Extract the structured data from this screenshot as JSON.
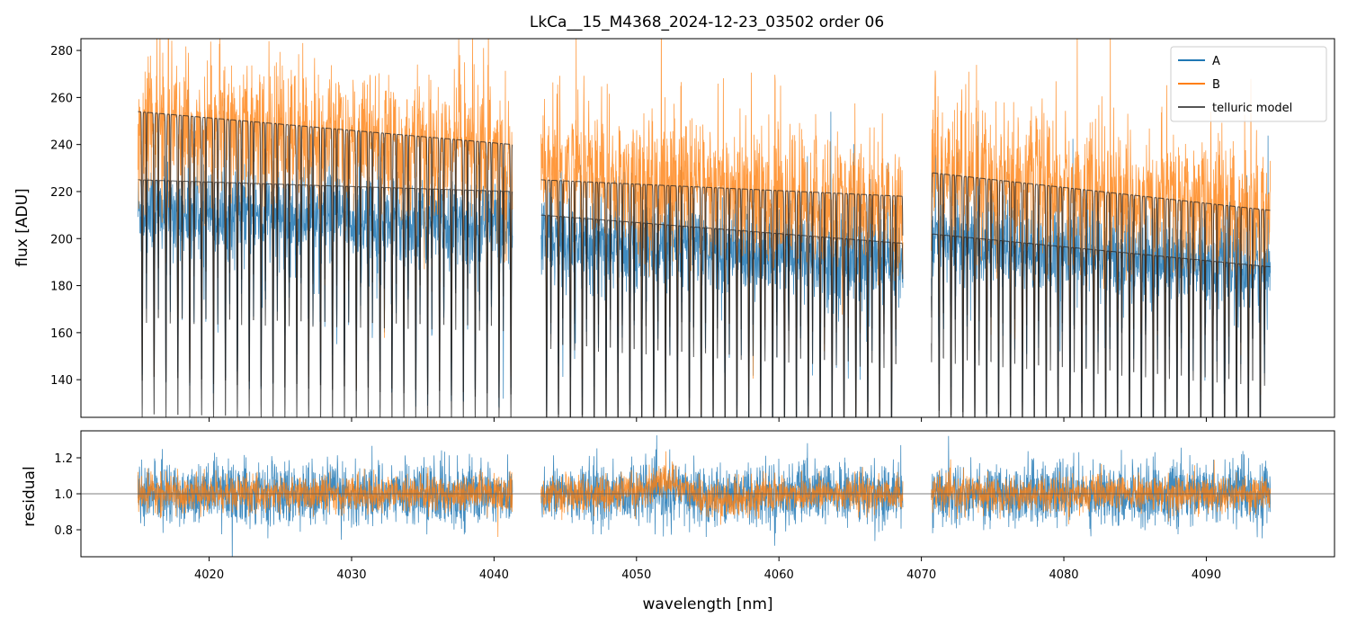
{
  "chart_data": [
    {
      "type": "line",
      "title": "LkCa__15_M4368_2024-12-23_03502  order 06",
      "xlabel": "",
      "ylabel": "flux [ADU]",
      "xlim": [
        4011,
        4099
      ],
      "ylim": [
        124,
        285
      ],
      "yticks": [
        140,
        160,
        180,
        200,
        220,
        240,
        260,
        280
      ],
      "xticks": [
        4020,
        4030,
        4040,
        4050,
        4060,
        4070,
        4080,
        4090
      ],
      "segments": [
        [
          4015.0,
          4041.3
        ],
        [
          4043.3,
          4068.7
        ],
        [
          4070.7,
          4094.5
        ]
      ],
      "series": [
        {
          "name": "A",
          "color": "#1f77b4",
          "level": [
            {
              "x": 4015.0,
              "y": 212
            },
            {
              "x": 4041.3,
              "y": 205
            },
            {
              "x": 4043.3,
              "y": 200
            },
            {
              "x": 4068.7,
              "y": 190
            },
            {
              "x": 4070.7,
              "y": 200
            },
            {
              "x": 4094.5,
              "y": 186
            }
          ]
        },
        {
          "name": "B",
          "color": "#ff7f0e",
          "level": [
            {
              "x": 4015.0,
              "y": 250
            },
            {
              "x": 4041.3,
              "y": 236
            },
            {
              "x": 4043.3,
              "y": 232
            },
            {
              "x": 4068.7,
              "y": 212
            },
            {
              "x": 4070.7,
              "y": 230
            },
            {
              "x": 4094.5,
              "y": 212
            }
          ]
        },
        {
          "name": "telluric model",
          "color": "#000000",
          "continuum_A": [
            {
              "x": 4015.0,
              "y": 225
            },
            {
              "x": 4041.3,
              "y": 220
            },
            {
              "x": 4043.3,
              "y": 210
            },
            {
              "x": 4068.7,
              "y": 198
            },
            {
              "x": 4070.7,
              "y": 202
            },
            {
              "x": 4094.5,
              "y": 188
            }
          ],
          "continuum_B": [
            {
              "x": 4015.0,
              "y": 254
            },
            {
              "x": 4041.3,
              "y": 240
            },
            {
              "x": 4043.3,
              "y": 225
            },
            {
              "x": 4068.7,
              "y": 218
            },
            {
              "x": 4070.7,
              "y": 228
            },
            {
              "x": 4094.5,
              "y": 212
            }
          ]
        }
      ],
      "legend": {
        "position": "top-right",
        "entries": [
          "A",
          "B",
          "telluric model"
        ]
      }
    },
    {
      "type": "line",
      "title": "",
      "xlabel": "wavelength [nm]",
      "ylabel": "residual",
      "xlim": [
        4011,
        4099
      ],
      "ylim": [
        0.65,
        1.35
      ],
      "yticks": [
        0.8,
        1.0,
        1.2
      ],
      "xticks": [
        4020,
        4030,
        4040,
        4050,
        4060,
        4070,
        4080,
        4090
      ],
      "reference_line": 1.0,
      "series": [
        {
          "name": "A",
          "color": "#1f77b4",
          "center": 1.0,
          "spread": 0.17
        },
        {
          "name": "B",
          "color": "#ff7f0e",
          "center": 1.0,
          "spread": 0.1
        }
      ]
    }
  ]
}
